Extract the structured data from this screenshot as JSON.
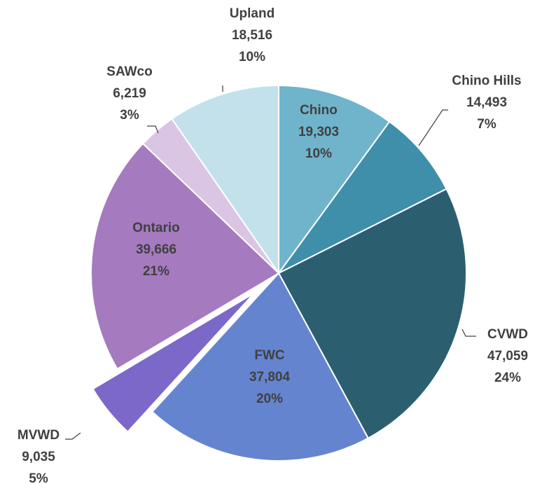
{
  "chart_data": {
    "type": "pie",
    "categories": [
      "Chino",
      "Chino Hills",
      "CVWD",
      "FWC",
      "MVWD",
      "Ontario",
      "SAWco",
      "Upland"
    ],
    "values": [
      19303,
      14493,
      47059,
      37804,
      9035,
      39666,
      6219,
      18516
    ],
    "value_labels": [
      "19,303",
      "14,493",
      "47,059",
      "37,804",
      "9,035",
      "39,666",
      "6,219",
      "18,516"
    ],
    "percents": [
      10,
      7,
      24,
      20,
      5,
      21,
      3,
      10
    ],
    "percent_labels": [
      "10%",
      "7%",
      "24%",
      "20%",
      "5%",
      "21%",
      "3%",
      "10%"
    ],
    "colors": [
      "#70b4cc",
      "#3f8fab",
      "#2b5f70",
      "#6584d0",
      "#7b68c8",
      "#a57abf",
      "#dac6e4",
      "#c3e1eb"
    ],
    "exploded": "MVWD"
  }
}
